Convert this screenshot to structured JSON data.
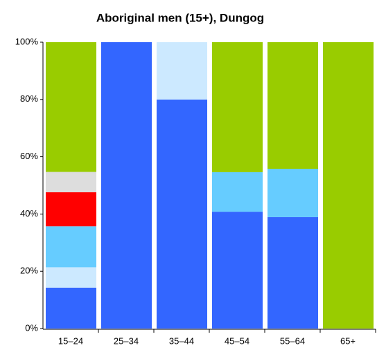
{
  "chart_data": {
    "type": "stacked_bar",
    "title": "Aboriginal men (15+), Dungog",
    "categories": [
      "15–24",
      "25–34",
      "35–44",
      "45–54",
      "55–64",
      "65+"
    ],
    "series": [
      {
        "color": "#3366ff",
        "values": [
          14.3,
          100,
          80,
          40.8,
          38.9,
          0
        ]
      },
      {
        "color": "#cce9ff",
        "values": [
          7.1,
          0,
          20,
          0,
          0,
          0
        ]
      },
      {
        "color": "#66ccff",
        "values": [
          14.3,
          0,
          0,
          13.8,
          16.9,
          0
        ]
      },
      {
        "color": "#ff0000",
        "values": [
          11.9,
          0,
          0,
          0,
          0,
          0
        ]
      },
      {
        "color": "#dddddd",
        "values": [
          7.1,
          0,
          0,
          0,
          0,
          0
        ]
      },
      {
        "color": "#99cc00",
        "values": [
          45.3,
          0,
          0,
          45.4,
          44.2,
          100
        ]
      }
    ],
    "ylim": [
      0,
      100
    ],
    "yticks": [
      {
        "value": 0,
        "label": "0%"
      },
      {
        "value": 20,
        "label": "20%"
      },
      {
        "value": 40,
        "label": "40%"
      },
      {
        "value": 60,
        "label": "60%"
      },
      {
        "value": 80,
        "label": "80%"
      },
      {
        "value": 100,
        "label": "100%"
      }
    ],
    "grid": false
  }
}
